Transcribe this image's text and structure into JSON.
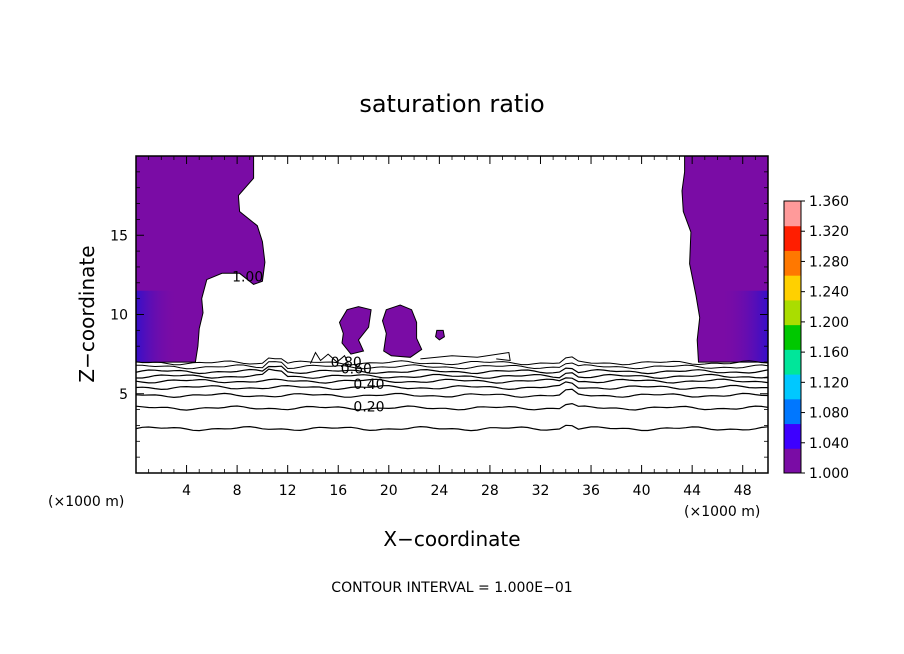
{
  "chart_data": {
    "type": "heatmap",
    "title": "saturation ratio",
    "xlabel": "X−coordinate",
    "ylabel": "Z−coordinate",
    "x_unit": "(×1000 m)",
    "y_unit": "(×1000 m)",
    "footer": "CONTOUR INTERVAL = 1.000E−01",
    "xlim": [
      0,
      50
    ],
    "ylim": [
      0,
      20
    ],
    "x_ticks": [
      4,
      8,
      12,
      16,
      20,
      24,
      28,
      32,
      36,
      40,
      44,
      48
    ],
    "y_ticks": [
      5,
      10,
      15
    ],
    "colorbar": {
      "min": 1.0,
      "max": 1.36,
      "ticks": [
        "1.360",
        "1.320",
        "1.280",
        "1.240",
        "1.200",
        "1.160",
        "1.120",
        "1.080",
        "1.040",
        "1.000"
      ],
      "colors": [
        "#7a0ca5",
        "#3d00ff",
        "#0077ff",
        "#00c8ff",
        "#00e69a",
        "#00c800",
        "#aadd00",
        "#ffd000",
        "#ff7800",
        "#ff1e00",
        "#ff9a9a"
      ]
    },
    "contour_labels": [
      {
        "text": "1.00",
        "x": 7.6,
        "z": 12.4
      },
      {
        "text": "0.80",
        "x": 15.4,
        "z": 7.0
      },
      {
        "text": "0.60",
        "x": 16.2,
        "z": 6.6
      },
      {
        "text": "0.40",
        "x": 17.2,
        "z": 5.6
      },
      {
        "text": "0.20",
        "x": 17.2,
        "z": 4.2
      }
    ],
    "contour_levels_z": [
      2.8,
      4.1,
      4.9,
      5.4,
      5.8,
      6.1,
      6.4,
      6.7,
      6.95
    ],
    "saturated_regions": [
      {
        "name": "left-column",
        "points": [
          [
            0,
            20
          ],
          [
            9.3,
            20
          ],
          [
            9.3,
            18.6
          ],
          [
            8.1,
            17.5
          ],
          [
            8.2,
            16.5
          ],
          [
            9.6,
            15.6
          ],
          [
            10.0,
            14.6
          ],
          [
            10.2,
            13.3
          ],
          [
            10.0,
            12.1
          ],
          [
            9.3,
            11.9
          ],
          [
            8.2,
            12.6
          ],
          [
            6.8,
            12.6
          ],
          [
            5.6,
            12.2
          ],
          [
            5.2,
            11.0
          ],
          [
            5.3,
            10.1
          ],
          [
            5.0,
            9.1
          ],
          [
            4.9,
            8.0
          ],
          [
            4.7,
            7.0
          ],
          [
            0,
            7.0
          ]
        ]
      },
      {
        "name": "right-column",
        "points": [
          [
            43.4,
            20
          ],
          [
            50,
            20
          ],
          [
            50,
            7.0
          ],
          [
            44.5,
            7.0
          ],
          [
            44.4,
            8.4
          ],
          [
            44.6,
            9.8
          ],
          [
            44.3,
            11.2
          ],
          [
            43.8,
            13.2
          ],
          [
            43.9,
            15.2
          ],
          [
            43.3,
            16.5
          ],
          [
            43.2,
            17.8
          ],
          [
            43.4,
            19.0
          ]
        ]
      },
      {
        "name": "center-cloud-left",
        "points": [
          [
            16.1,
            9.5
          ],
          [
            16.7,
            10.3
          ],
          [
            17.6,
            10.5
          ],
          [
            18.6,
            10.3
          ],
          [
            18.4,
            9.2
          ],
          [
            17.6,
            8.4
          ],
          [
            18.0,
            7.7
          ],
          [
            17.0,
            7.5
          ],
          [
            16.3,
            8.2
          ],
          [
            16.4,
            8.8
          ]
        ]
      },
      {
        "name": "center-cloud-right",
        "points": [
          [
            19.8,
            10.3
          ],
          [
            20.9,
            10.6
          ],
          [
            21.8,
            10.3
          ],
          [
            22.2,
            9.5
          ],
          [
            22.2,
            8.5
          ],
          [
            22.6,
            7.8
          ],
          [
            21.7,
            7.3
          ],
          [
            20.2,
            7.4
          ],
          [
            19.6,
            7.7
          ],
          [
            19.8,
            8.8
          ],
          [
            19.5,
            9.6
          ]
        ]
      },
      {
        "name": "small-cell",
        "points": [
          [
            23.8,
            9.0
          ],
          [
            24.3,
            9.0
          ],
          [
            24.4,
            8.6
          ],
          [
            24.0,
            8.4
          ],
          [
            23.7,
            8.6
          ]
        ]
      }
    ]
  }
}
